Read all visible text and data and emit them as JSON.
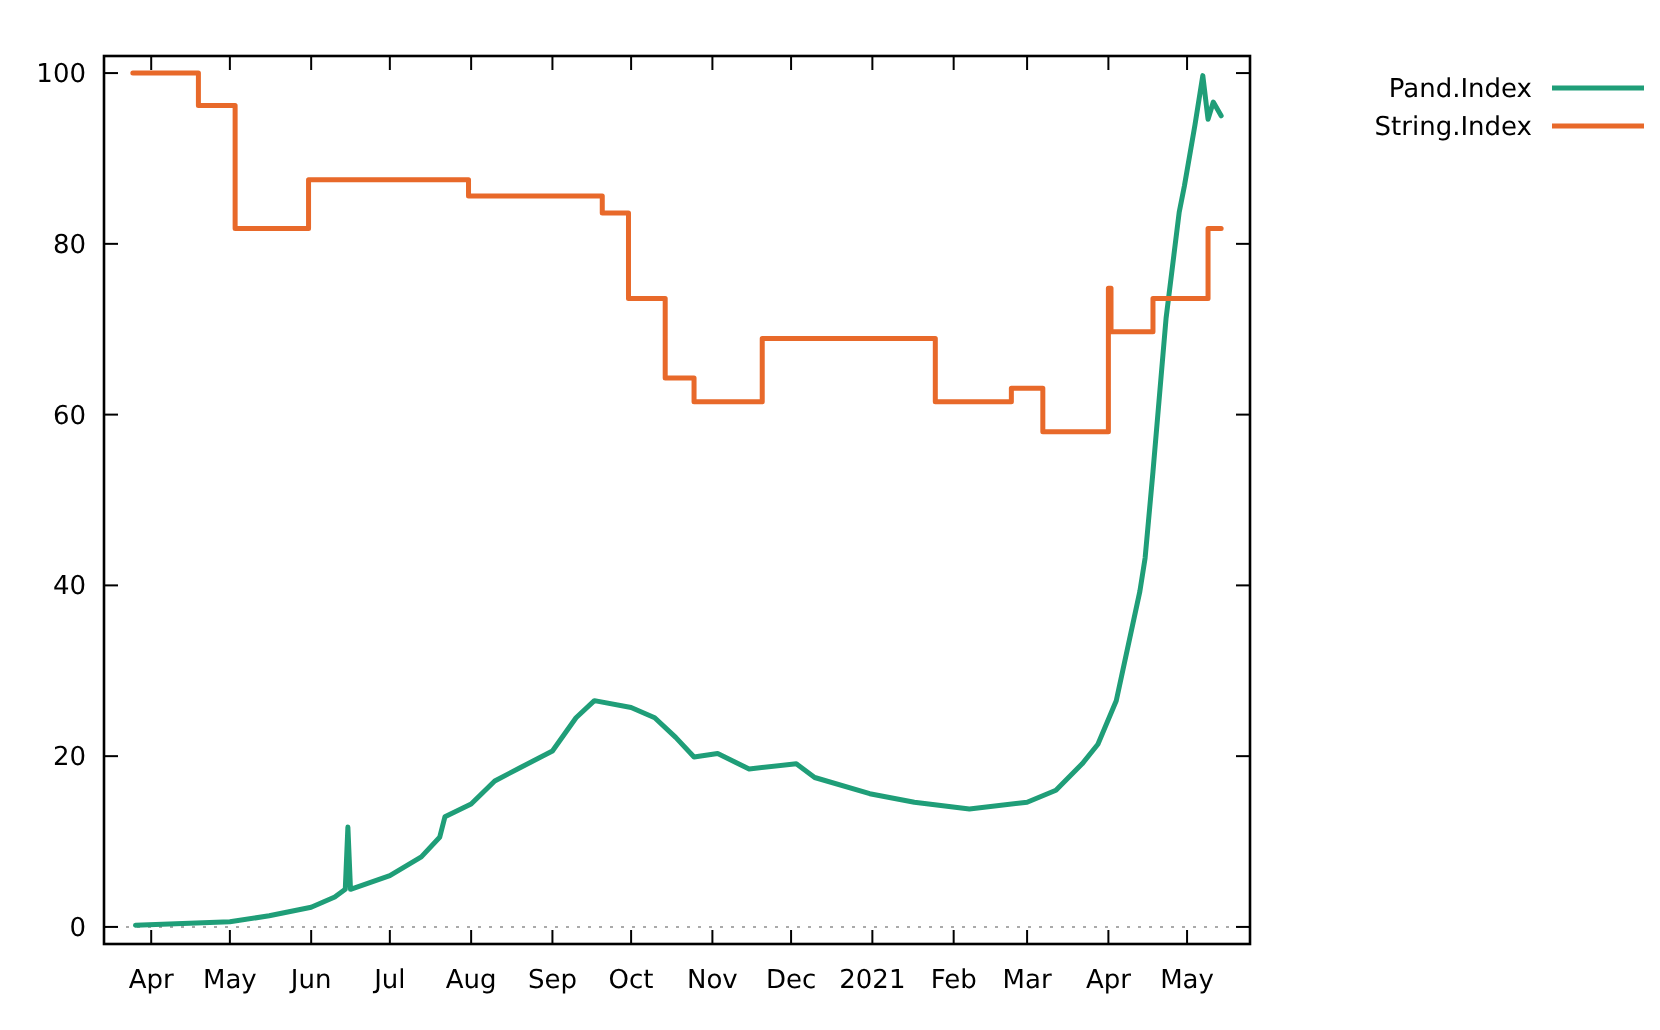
{
  "chart_data": {
    "type": "line",
    "xlim": [
      "2020-03-14",
      "2021-05-25"
    ],
    "xticks": [
      {
        "value": "2020-04-01",
        "label": "Apr"
      },
      {
        "value": "2020-05-01",
        "label": "May"
      },
      {
        "value": "2020-06-01",
        "label": "Jun"
      },
      {
        "value": "2020-07-01",
        "label": "Jul"
      },
      {
        "value": "2020-08-01",
        "label": "Aug"
      },
      {
        "value": "2020-09-01",
        "label": "Sep"
      },
      {
        "value": "2020-10-01",
        "label": "Oct"
      },
      {
        "value": "2020-11-01",
        "label": "Nov"
      },
      {
        "value": "2020-12-01",
        "label": "Dec"
      },
      {
        "value": "2021-01-01",
        "label": "2021"
      },
      {
        "value": "2021-02-01",
        "label": "Feb"
      },
      {
        "value": "2021-03-01",
        "label": "Mar"
      },
      {
        "value": "2021-04-01",
        "label": "Apr"
      },
      {
        "value": "2021-05-01",
        "label": "May"
      }
    ],
    "ylim": [
      -2,
      102
    ],
    "yticks": [
      0,
      20,
      40,
      60,
      80,
      100
    ],
    "grid": false,
    "legend": "top right",
    "marker": "none",
    "line_style": "solid",
    "ref_lines": [
      {
        "axis": "y",
        "value": 0,
        "color": "#aaaaaa",
        "line_style": "dotted"
      }
    ],
    "series": [
      {
        "name": "Pand.Index",
        "color": "#1f9e78",
        "x": [
          "2020-03-26",
          "2020-05-01",
          "2020-05-16",
          "2020-06-01",
          "2020-06-10",
          "2020-06-14",
          "2020-06-15",
          "2020-06-16",
          "2020-07-01",
          "2020-07-13",
          "2020-07-20",
          "2020-07-22",
          "2020-08-01",
          "2020-08-10",
          "2020-08-20",
          "2020-09-01",
          "2020-09-10",
          "2020-09-17",
          "2020-10-01",
          "2020-10-10",
          "2020-10-18",
          "2020-10-25",
          "2020-11-03",
          "2020-11-15",
          "2020-12-03",
          "2020-12-10",
          "2020-12-31",
          "2021-01-17",
          "2021-02-07",
          "2021-03-01",
          "2021-03-12",
          "2021-03-22",
          "2021-03-28",
          "2021-04-04",
          "2021-04-13",
          "2021-04-15",
          "2021-04-18",
          "2021-04-23",
          "2021-04-28",
          "2021-04-30",
          "2021-05-04",
          "2021-05-07",
          "2021-05-09",
          "2021-05-11",
          "2021-05-14"
        ],
        "values": [
          0.2,
          0.6,
          1.3,
          2.3,
          3.5,
          4.4,
          11.7,
          4.4,
          6.0,
          8.2,
          10.5,
          12.9,
          14.4,
          17.1,
          18.7,
          20.6,
          24.5,
          26.5,
          25.7,
          24.5,
          22.2,
          19.9,
          20.3,
          18.5,
          19.1,
          17.5,
          15.6,
          14.6,
          13.8,
          14.6,
          16.0,
          19.1,
          21.4,
          26.5,
          39.3,
          43.2,
          53.3,
          71.3,
          83.7,
          86.8,
          93.9,
          99.7,
          94.6,
          96.6,
          95.0
        ]
      },
      {
        "name": "String.Index",
        "color": "#e8692a",
        "type": "step",
        "x": [
          "2020-03-25",
          "2020-04-19",
          "2020-05-03",
          "2020-05-31",
          "2020-07-31",
          "2020-09-20",
          "2020-09-30",
          "2020-10-14",
          "2020-10-25",
          "2020-11-20",
          "2021-01-25",
          "2021-02-23",
          "2021-03-07",
          "2021-04-01",
          "2021-04-02",
          "2021-04-18",
          "2021-05-09",
          "2021-05-14"
        ],
        "values": [
          100,
          96.2,
          81.8,
          87.5,
          85.6,
          83.6,
          73.6,
          64.3,
          61.5,
          68.9,
          61.5,
          63.1,
          58.0,
          74.8,
          69.7,
          73.6,
          81.8,
          81.8
        ]
      }
    ]
  }
}
